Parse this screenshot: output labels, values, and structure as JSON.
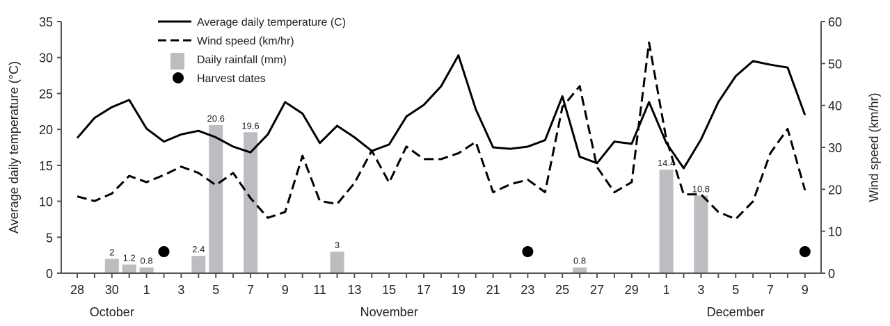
{
  "chart_data": {
    "type": "line",
    "ylabel_left": "Average daily temperature (°C)",
    "ylabel_right": "Wind speed (km/hr)",
    "ylim_left": [
      0,
      35
    ],
    "ylim_right": [
      0,
      60
    ],
    "yticks_left": [
      "0",
      "5",
      "10",
      "15",
      "20",
      "25",
      "30",
      "35"
    ],
    "yticks_right": [
      "0",
      "10",
      "20",
      "30",
      "40",
      "50",
      "60"
    ],
    "grid": false,
    "legend_placement": "top-center",
    "x": [
      "Oct 28",
      "Oct 29",
      "Oct 30",
      "Oct 31",
      "Nov 1",
      "Nov 2",
      "Nov 3",
      "Nov 4",
      "Nov 5",
      "Nov 6",
      "Nov 7",
      "Nov 8",
      "Nov 9",
      "Nov 10",
      "Nov 11",
      "Nov 12",
      "Nov 13",
      "Nov 14",
      "Nov 15",
      "Nov 16",
      "Nov 17",
      "Nov 18",
      "Nov 19",
      "Nov 20",
      "Nov 21",
      "Nov 22",
      "Nov 23",
      "Nov 24",
      "Nov 25",
      "Nov 26",
      "Nov 27",
      "Nov 28",
      "Nov 29",
      "Nov 30",
      "Dec 1",
      "Dec 2",
      "Dec 3",
      "Dec 4",
      "Dec 5",
      "Dec 6",
      "Dec 7",
      "Dec 8",
      "Dec 9"
    ],
    "xtick_labels": [
      "28",
      "30",
      "1",
      "3",
      "5",
      "7",
      "9",
      "11",
      "13",
      "15",
      "17",
      "19",
      "21",
      "23",
      "25",
      "27",
      "29",
      "1",
      "3",
      "5",
      "7",
      "9"
    ],
    "month_labels": [
      {
        "label": "October",
        "at": "Oct 30"
      },
      {
        "label": "November",
        "at": "Nov 15"
      },
      {
        "label": "December",
        "at": "Dec 5"
      }
    ],
    "series": [
      {
        "name": "Average daily temperature (C)",
        "axis": "left",
        "style": "solid",
        "values": [
          18.8,
          21.6,
          23.1,
          24.1,
          20.1,
          18.3,
          19.3,
          19.8,
          18.9,
          17.6,
          16.8,
          19.3,
          23.8,
          22.2,
          18.1,
          20.5,
          18.9,
          17.0,
          17.9,
          21.8,
          23.4,
          26.0,
          30.3,
          22.8,
          17.5,
          17.3,
          17.6,
          18.5,
          24.6,
          16.2,
          15.3,
          18.3,
          18.0,
          23.8,
          18.1,
          14.6,
          18.6,
          23.8,
          27.4,
          29.5,
          29.0,
          28.6,
          22.0
        ]
      },
      {
        "name": "Wind speed (km/hr)",
        "axis": "right",
        "style": "dashed",
        "values": [
          18.3,
          17.2,
          19.0,
          23.2,
          21.7,
          23.4,
          25.4,
          23.9,
          21.0,
          23.9,
          17.9,
          13.2,
          14.6,
          28.0,
          17.2,
          16.5,
          21.5,
          29.2,
          21.6,
          30.2,
          27.2,
          27.2,
          28.6,
          31.3,
          19.3,
          21.2,
          22.3,
          19.3,
          39.6,
          44.6,
          25.3,
          19.3,
          21.7,
          55.0,
          31.9,
          18.8,
          18.8,
          14.6,
          12.9,
          17.1,
          28.6,
          34.4,
          19.8
        ]
      },
      {
        "name": "Daily rainfall (mm)",
        "axis": "left",
        "style": "bar",
        "color": "#bcbdc0",
        "points": [
          {
            "x": "Oct 30",
            "value": 2,
            "label": "2"
          },
          {
            "x": "Oct 31",
            "value": 1.2,
            "label": "1.2"
          },
          {
            "x": "Nov 1",
            "value": 0.8,
            "label": "0.8"
          },
          {
            "x": "Nov 4",
            "value": 2.4,
            "label": "2.4"
          },
          {
            "x": "Nov 5",
            "value": 20.6,
            "label": "20.6"
          },
          {
            "x": "Nov 7",
            "value": 19.6,
            "label": "19.6"
          },
          {
            "x": "Nov 12",
            "value": 3,
            "label": "3"
          },
          {
            "x": "Nov 26",
            "value": 0.8,
            "label": "0.8"
          },
          {
            "x": "Dec 1",
            "value": 14.4,
            "label": "14.4"
          },
          {
            "x": "Dec 3",
            "value": 10.8,
            "label": "10.8"
          }
        ]
      },
      {
        "name": "Harvest dates",
        "style": "marker",
        "dates": [
          "Nov 2",
          "Nov 23",
          "Dec 9"
        ]
      }
    ],
    "legend": [
      {
        "label": "Average daily temperature (C)",
        "icon": "solid-line"
      },
      {
        "label": "Wind speed (km/hr)",
        "icon": "dashed-line"
      },
      {
        "label": "Daily rainfall (mm)",
        "icon": "gray-square"
      },
      {
        "label": "Harvest dates",
        "icon": "black-dot"
      }
    ]
  }
}
